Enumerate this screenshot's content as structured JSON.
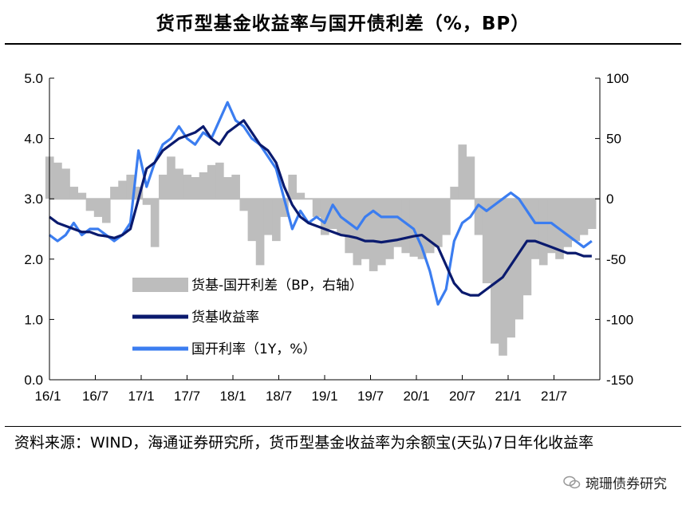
{
  "header": {
    "title": "货币型基金收益率与国开债利差（%，BP）"
  },
  "footer": {
    "source": "资料来源：WIND，海通证券研究所，货币型基金收益率为余额宝(天弘)7日年化收益率",
    "watermark": "琬珊债券研究"
  },
  "colors": {
    "spread": "#bdbdbd",
    "mmf": "#0a1a6e",
    "cdb": "#3b7df0"
  },
  "chart_data": {
    "type": "line",
    "title": "货币型基金收益率与国开债利差（%，BP）",
    "x_ticks": [
      "16/1",
      "16/7",
      "17/1",
      "17/7",
      "18/1",
      "18/7",
      "19/1",
      "19/7",
      "20/1",
      "20/7",
      "21/1",
      "21/7"
    ],
    "y_left": {
      "ylim": [
        0,
        5
      ],
      "ticks": [
        "0.0",
        "1.0",
        "2.0",
        "3.0",
        "4.0",
        "5.0"
      ]
    },
    "y_right": {
      "ylim": [
        -150,
        100
      ],
      "ticks": [
        "-150",
        "-100",
        "-50",
        "0",
        "50",
        "100"
      ]
    },
    "x_range": [
      0,
      68
    ],
    "series": [
      {
        "name": "货基-国开利差（BP，右轴）",
        "kind": "bar",
        "axis": "right",
        "x": [
          0,
          1,
          2,
          3,
          4,
          5,
          6,
          7,
          8,
          9,
          10,
          11,
          12,
          13,
          14,
          15,
          16,
          17,
          18,
          19,
          20,
          21,
          22,
          23,
          24,
          25,
          26,
          27,
          28,
          29,
          30,
          31,
          32,
          33,
          34,
          35,
          36,
          37,
          38,
          39,
          40,
          41,
          42,
          43,
          44,
          45,
          46,
          47,
          48,
          49,
          50,
          51,
          52,
          53,
          54,
          55,
          56,
          57,
          58,
          59,
          60,
          61,
          62,
          63,
          64,
          65,
          66,
          67
        ],
        "values": [
          35,
          30,
          25,
          10,
          5,
          -10,
          -15,
          -20,
          10,
          15,
          20,
          10,
          -5,
          -40,
          20,
          35,
          25,
          20,
          18,
          22,
          28,
          30,
          18,
          20,
          -10,
          -35,
          -55,
          -30,
          -35,
          -15,
          20,
          5,
          0,
          -15,
          -30,
          -25,
          -30,
          -45,
          -55,
          -50,
          -60,
          -55,
          -50,
          -40,
          -45,
          -48,
          -50,
          -45,
          -40,
          -30,
          10,
          45,
          35,
          -30,
          -70,
          -120,
          -130,
          -115,
          -100,
          -80,
          -50,
          -55,
          -45,
          -50,
          -40,
          -35,
          -30,
          -25
        ]
      },
      {
        "name": "货基收益率",
        "kind": "line",
        "axis": "left",
        "x": [
          0,
          1,
          2,
          3,
          4,
          5,
          6,
          7,
          8,
          9,
          10,
          11,
          12,
          13,
          14,
          15,
          16,
          17,
          18,
          19,
          20,
          21,
          22,
          23,
          24,
          25,
          26,
          27,
          28,
          29,
          30,
          31,
          32,
          33,
          34,
          35,
          36,
          37,
          38,
          39,
          40,
          41,
          42,
          43,
          44,
          45,
          46,
          47,
          48,
          49,
          50,
          51,
          52,
          53,
          54,
          55,
          56,
          57,
          58,
          59,
          60,
          61,
          62,
          63,
          64,
          65,
          66,
          67
        ],
        "values": [
          2.7,
          2.6,
          2.55,
          2.5,
          2.45,
          2.45,
          2.4,
          2.38,
          2.35,
          2.4,
          2.5,
          3.0,
          3.5,
          3.6,
          3.8,
          3.9,
          4.0,
          4.05,
          4.1,
          4.2,
          4.0,
          3.9,
          4.1,
          4.2,
          4.3,
          4.1,
          3.9,
          3.8,
          3.6,
          3.2,
          2.9,
          2.7,
          2.6,
          2.55,
          2.5,
          2.45,
          2.4,
          2.38,
          2.35,
          2.3,
          2.3,
          2.28,
          2.3,
          2.32,
          2.35,
          2.38,
          2.4,
          2.3,
          2.2,
          1.9,
          1.6,
          1.45,
          1.4,
          1.4,
          1.5,
          1.6,
          1.7,
          1.9,
          2.1,
          2.3,
          2.3,
          2.25,
          2.2,
          2.15,
          2.1,
          2.1,
          2.05,
          2.05
        ]
      },
      {
        "name": "国开利率（1Y，%）",
        "kind": "line",
        "axis": "left",
        "x": [
          0,
          1,
          2,
          3,
          4,
          5,
          6,
          7,
          8,
          9,
          10,
          11,
          12,
          13,
          14,
          15,
          16,
          17,
          18,
          19,
          20,
          21,
          22,
          23,
          24,
          25,
          26,
          27,
          28,
          29,
          30,
          31,
          32,
          33,
          34,
          35,
          36,
          37,
          38,
          39,
          40,
          41,
          42,
          43,
          44,
          45,
          46,
          47,
          48,
          49,
          50,
          51,
          52,
          53,
          54,
          55,
          56,
          57,
          58,
          59,
          60,
          61,
          62,
          63,
          64,
          65,
          66,
          67
        ],
        "values": [
          2.4,
          2.3,
          2.4,
          2.6,
          2.4,
          2.5,
          2.5,
          2.4,
          2.3,
          2.4,
          2.6,
          3.8,
          3.2,
          3.6,
          3.9,
          4.0,
          4.2,
          4.0,
          3.9,
          4.1,
          4.0,
          4.3,
          4.6,
          4.3,
          4.2,
          4.0,
          3.9,
          3.7,
          3.5,
          3.0,
          2.5,
          2.8,
          2.6,
          2.7,
          2.6,
          2.9,
          2.7,
          2.6,
          2.5,
          2.7,
          2.8,
          2.7,
          2.7,
          2.7,
          2.6,
          2.5,
          2.2,
          1.8,
          1.25,
          1.5,
          2.3,
          2.6,
          2.7,
          2.9,
          2.8,
          2.9,
          3.0,
          3.1,
          3.0,
          2.8,
          2.6,
          2.6,
          2.6,
          2.5,
          2.4,
          2.3,
          2.2,
          2.3
        ]
      }
    ]
  }
}
